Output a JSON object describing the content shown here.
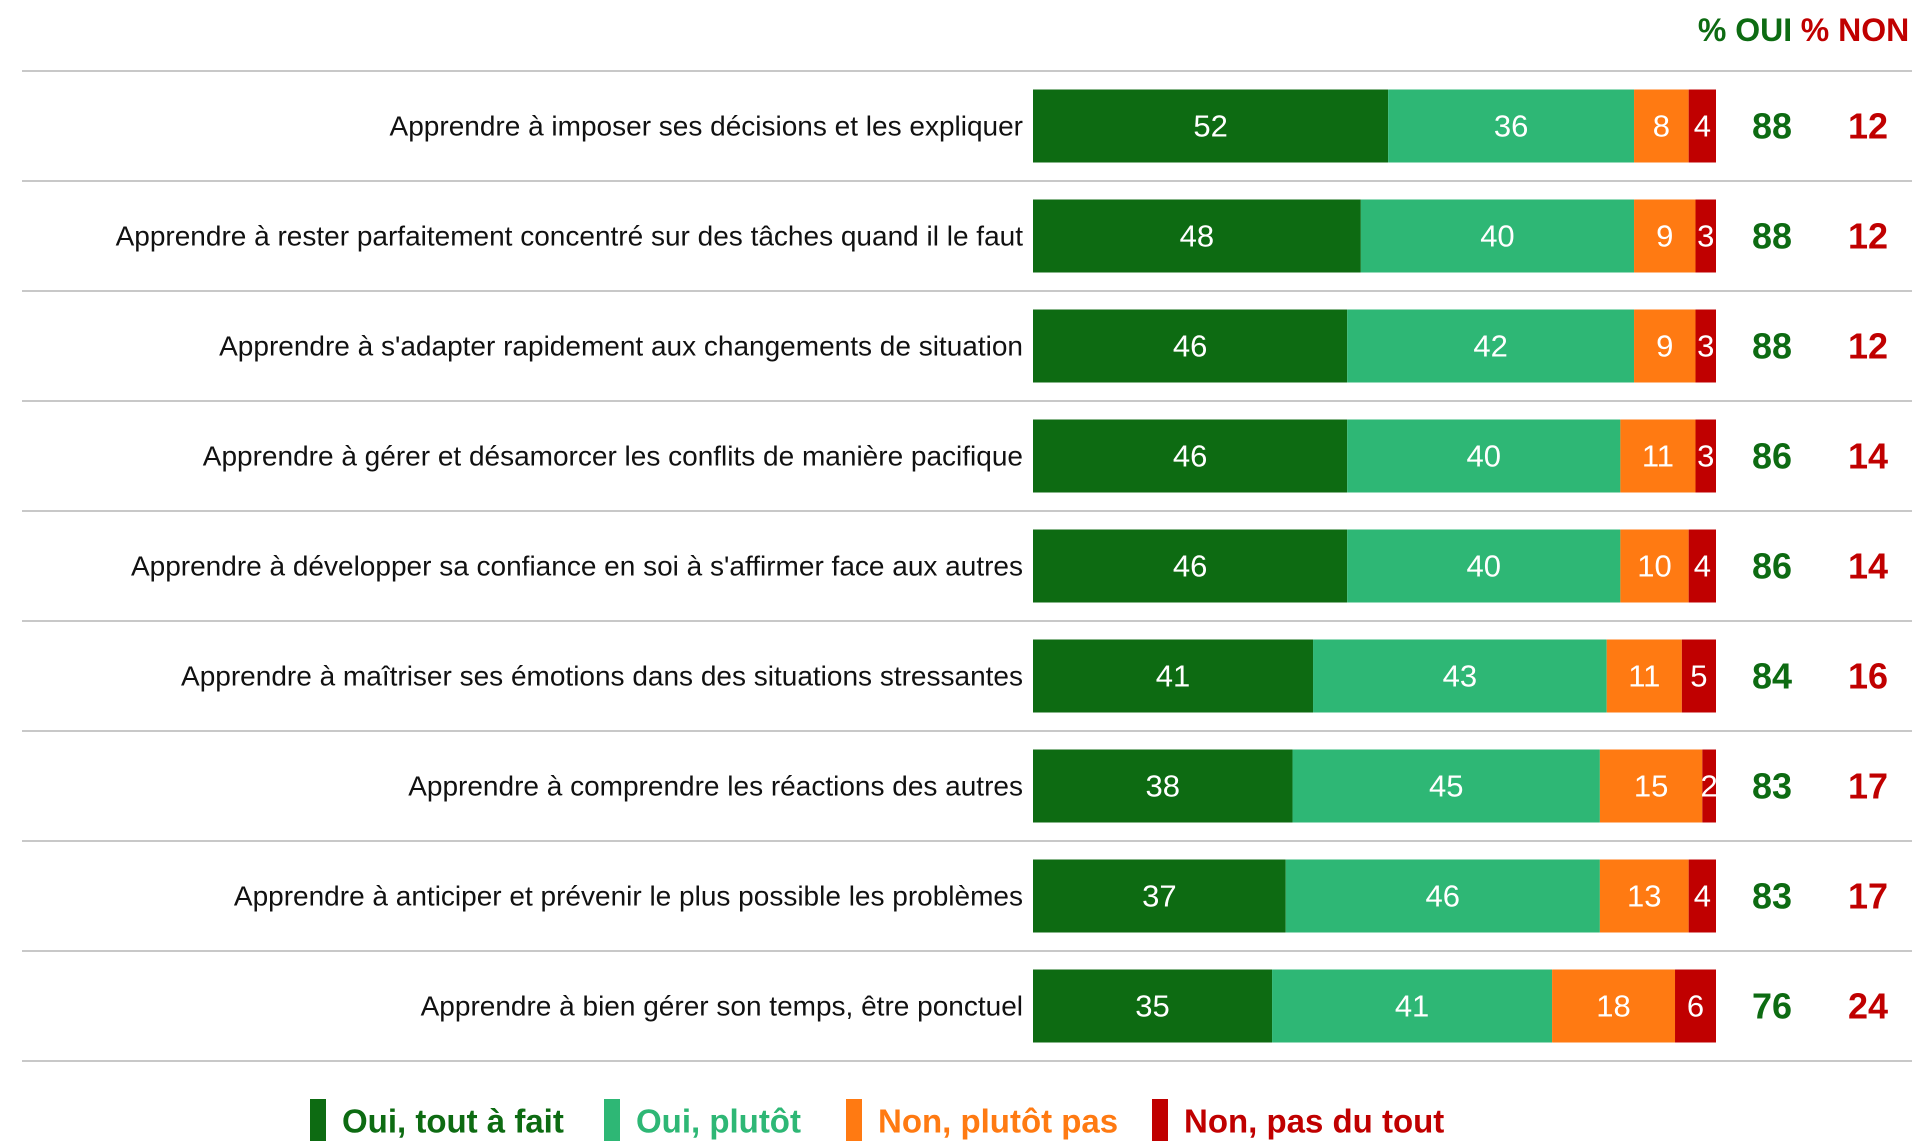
{
  "chart_data": {
    "type": "stacked-bar-horizontal",
    "categories": [
      "Apprendre à imposer ses décisions et les expliquer",
      "Apprendre à rester parfaitement concentré sur des tâches quand il le faut",
      "Apprendre à s'adapter rapidement aux changements de situation",
      "Apprendre à gérer et désamorcer les conflits de manière pacifique",
      "Apprendre à développer sa confiance en soi à s'affirmer face aux autres",
      "Apprendre à maîtriser ses émotions dans des situations stressantes",
      "Apprendre à comprendre les réactions des autres",
      "Apprendre à anticiper et prévenir le plus possible les problèmes",
      "Apprendre à bien gérer son temps, être ponctuel"
    ],
    "series": [
      {
        "name": "Oui, tout à fait",
        "color": "#0d6b12",
        "values": [
          52,
          48,
          46,
          46,
          46,
          41,
          38,
          37,
          35
        ]
      },
      {
        "name": "Oui, plutôt",
        "color": "#2eb775",
        "values": [
          36,
          40,
          42,
          40,
          40,
          43,
          45,
          46,
          41
        ]
      },
      {
        "name": "Non, plutôt pas",
        "color": "#ff7a12",
        "values": [
          8,
          9,
          9,
          11,
          10,
          11,
          15,
          13,
          18
        ]
      },
      {
        "name": "Non, pas du tout",
        "color": "#c00000",
        "values": [
          4,
          3,
          3,
          3,
          4,
          5,
          2,
          4,
          6
        ]
      }
    ],
    "xlim": [
      0,
      100
    ],
    "summary_columns": [
      {
        "name": "% OUI",
        "color": "#0d6b12",
        "values": [
          88,
          88,
          88,
          86,
          86,
          84,
          83,
          83,
          76
        ]
      },
      {
        "name": "% NON",
        "color": "#c00000",
        "values": [
          12,
          12,
          12,
          14,
          14,
          16,
          17,
          17,
          24
        ]
      }
    ]
  }
}
